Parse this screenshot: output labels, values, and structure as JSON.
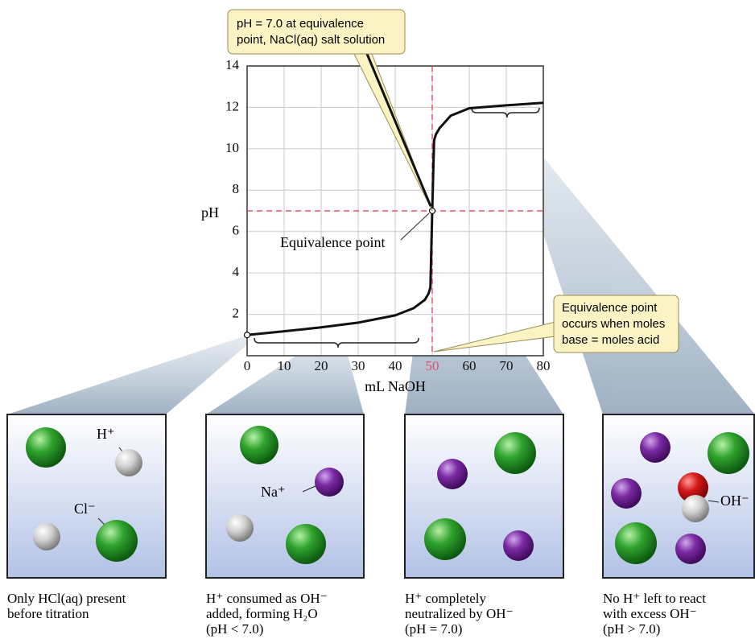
{
  "chart_data": {
    "type": "line",
    "x_label": "mL NaOH",
    "y_label": "pH",
    "x": [
      0,
      10,
      20,
      30,
      40,
      45,
      48,
      49,
      49.5,
      50,
      50.5,
      51,
      52,
      55,
      60,
      70,
      80
    ],
    "series": [
      {
        "color": "#111111",
        "values": [
          1.0,
          1.18,
          1.37,
          1.6,
          1.95,
          2.3,
          2.7,
          3.0,
          3.3,
          7.0,
          10.4,
          10.7,
          11.0,
          11.6,
          11.96,
          12.1,
          12.22
        ]
      }
    ],
    "xlim": [
      0,
      80
    ],
    "ylim": [
      0,
      14
    ],
    "xticks": [
      0,
      10,
      20,
      30,
      40,
      50,
      60,
      70,
      80
    ],
    "yticks": [
      2,
      4,
      6,
      8,
      10,
      12,
      14
    ],
    "grid": true,
    "reference_lines": {
      "x": 50,
      "y": 7,
      "color": "#e05063"
    },
    "annotations": [
      {
        "lines": [
          "pH = 7.0 at equivalence",
          "point, NaCl(aq) salt solution"
        ]
      },
      {
        "lines": [
          "Equivalence point"
        ]
      },
      {
        "lines": [
          "Equivalence point",
          "occurs when moles",
          "base = moles acid"
        ]
      }
    ]
  },
  "panels": [
    {
      "labels": [
        "H⁺",
        "Cl⁻"
      ],
      "caption": [
        "Only HCl(aq) present",
        "before titration"
      ]
    },
    {
      "labels": [
        "Na⁺"
      ],
      "caption": [
        "H⁺ consumed as OH⁻",
        "added, forming H₂O",
        "(pH < 7.0)"
      ]
    },
    {
      "labels": [],
      "caption": [
        "H⁺ completely",
        "neutralized by OH⁻",
        "(pH = 7.0)"
      ]
    },
    {
      "labels": [
        "OH⁻"
      ],
      "caption": [
        "No H⁺ left to react",
        "with excess OH⁻",
        "(pH > 7.0)"
      ]
    }
  ]
}
